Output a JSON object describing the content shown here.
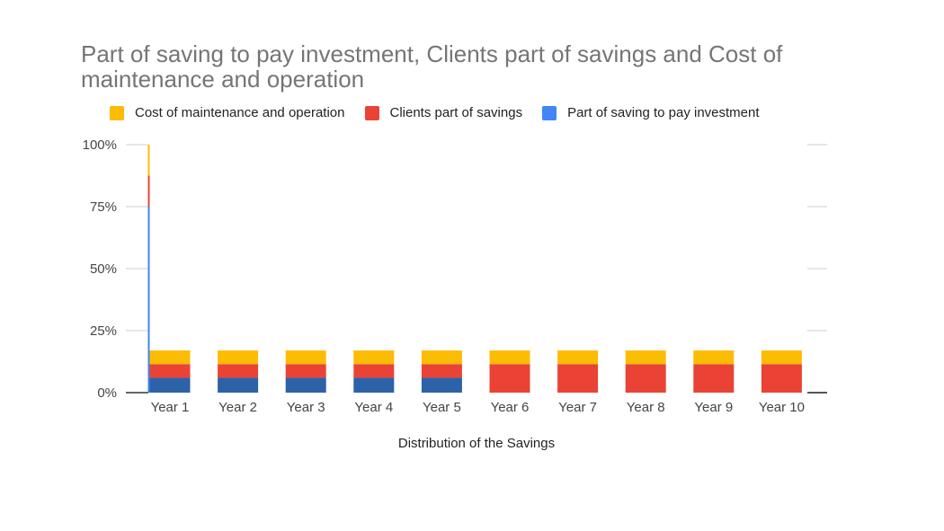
{
  "chart_data": {
    "type": "bar",
    "stacked": true,
    "title": "Part of saving to pay investment, Clients part of savings and Cost of maintenance and operation",
    "xlabel": "Distribution of the Savings",
    "ylabel": "",
    "ylim": [
      0,
      1
    ],
    "yticks": [
      "0%",
      "25%",
      "50%",
      "75%",
      "100%"
    ],
    "ytick_values": [
      0,
      0.25,
      0.5,
      0.75,
      1.0
    ],
    "legend_position": "top",
    "grid": true,
    "categories": [
      "Year 1",
      "Year 2",
      "Year 3",
      "Year 4",
      "Year 5",
      "Year 6",
      "Year 7",
      "Year 8",
      "Year 9",
      "Year 10"
    ],
    "series": [
      {
        "name": "Part of saving to pay investment",
        "color": "#2c62a8",
        "values": [
          0.06,
          0.06,
          0.06,
          0.06,
          0.06,
          0,
          0,
          0,
          0,
          0
        ]
      },
      {
        "name": "Clients part of savings",
        "color": "#ea4335",
        "values": [
          0.055,
          0.055,
          0.055,
          0.055,
          0.055,
          0.115,
          0.115,
          0.115,
          0.115,
          0.115
        ]
      },
      {
        "name": "Cost of maintenance and operation",
        "color": "#fbbc04",
        "values": [
          0.055,
          0.055,
          0.055,
          0.055,
          0.055,
          0.055,
          0.055,
          0.055,
          0.055,
          0.055
        ]
      }
    ],
    "legend": [
      {
        "name": "Cost of maintenance and operation",
        "color": "#fbbc04"
      },
      {
        "name": "Clients part of savings",
        "color": "#ea4335"
      },
      {
        "name": "Part of saving to pay investment",
        "color": "#4285f4"
      }
    ]
  }
}
